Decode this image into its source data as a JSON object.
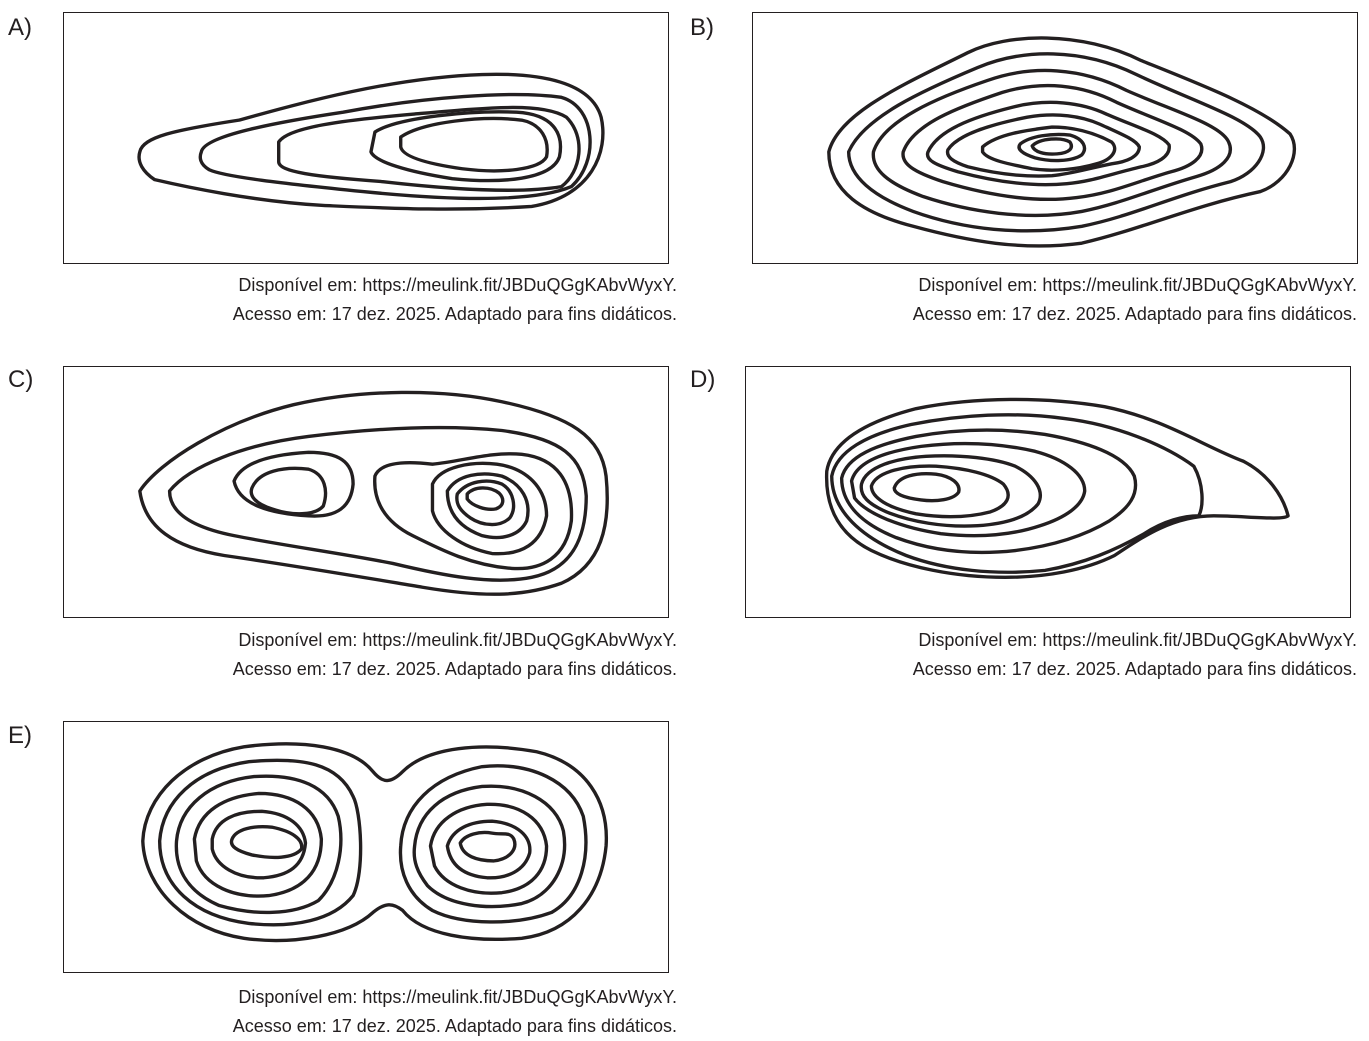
{
  "options": [
    {
      "letter": "A)",
      "caption_line1": "Disponível em: https://meulink.fit/JBDuQGgKAbvWyxY.",
      "caption_line2": "Acesso em: 17 dez. 2025. Adaptado para fins didáticos."
    },
    {
      "letter": "B)",
      "caption_line1": "Disponível em: https://meulink.fit/JBDuQGgKAbvWyxY.",
      "caption_line2": "Acesso em: 17 dez. 2025. Adaptado para fins didáticos."
    },
    {
      "letter": "C)",
      "caption_line1": "Disponível em: https://meulink.fit/JBDuQGgKAbvWyxY.",
      "caption_line2": "Acesso em: 17 dez. 2025. Adaptado para fins didáticos."
    },
    {
      "letter": "D)",
      "caption_line1": "Disponível em: https://meulink.fit/JBDuQGgKAbvWyxY.",
      "caption_line2": "Acesso em: 17 dez. 2025. Adaptado para fins didáticos."
    },
    {
      "letter": "E)",
      "caption_line1": "Disponível em: https://meulink.fit/JBDuQGgKAbvWyxY.",
      "caption_line2": "Acesso em: 17 dez. 2025. Adaptado para fins didáticos."
    }
  ],
  "colors": {
    "line": "#231f20",
    "background": "#ffffff"
  }
}
